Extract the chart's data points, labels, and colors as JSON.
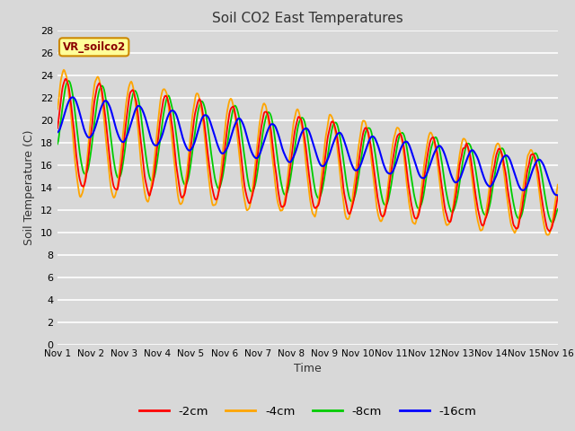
{
  "title": "Soil CO2 East Temperatures",
  "xlabel": "Time",
  "ylabel": "Soil Temperature (C)",
  "ylim": [
    0,
    28
  ],
  "yticks": [
    0,
    2,
    4,
    6,
    8,
    10,
    12,
    14,
    16,
    18,
    20,
    22,
    24,
    26,
    28
  ],
  "colors": {
    "-2cm": "#ff0000",
    "-4cm": "#ffa500",
    "-8cm": "#00cc00",
    "-16cm": "#0000ff"
  },
  "legend_label": "VR_soilco2",
  "legend_box_color": "#ffff99",
  "legend_box_edge": "#cc8800",
  "bg_color": "#d8d8d8",
  "plot_bg_color": "#d8d8d8",
  "grid_color": "#ffffff",
  "xtick_labels": [
    "Nov 1",
    "Nov 2",
    "Nov 3",
    "Nov 4",
    "Nov 5",
    "Nov 6",
    "Nov 7",
    "Nov 8",
    "Nov 9",
    "Nov 10",
    "Nov 11",
    "Nov 12",
    "Nov 13",
    "Nov 14",
    "Nov 15",
    "Nov 16"
  ],
  "n_days": 15,
  "pts_per_day": 48
}
